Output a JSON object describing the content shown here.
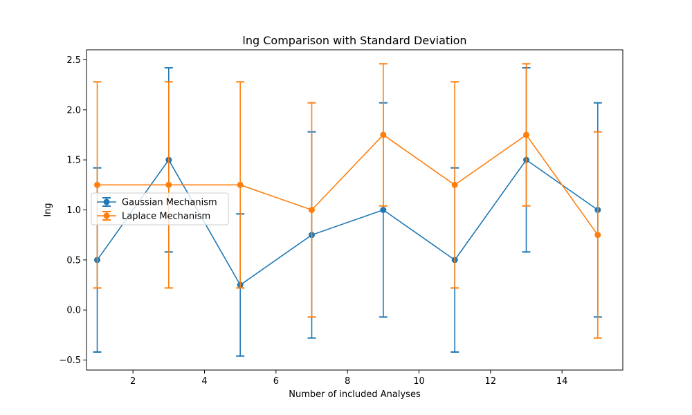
{
  "chart_data": {
    "type": "line",
    "title": "lng Comparison with Standard Deviation",
    "xlabel": "Number of included Analyses",
    "ylabel": "lng",
    "xlim": [
      0.7,
      15.7
    ],
    "ylim": [
      -0.6,
      2.6
    ],
    "xticks": [
      2,
      4,
      6,
      8,
      10,
      12,
      14
    ],
    "yticks": [
      -0.5,
      0.0,
      0.5,
      1.0,
      1.5,
      2.0,
      2.5
    ],
    "ytick_labels": [
      "−0.5",
      "0.0",
      "0.5",
      "1.0",
      "1.5",
      "2.0",
      "2.5"
    ],
    "x": [
      1,
      3,
      5,
      7,
      9,
      11,
      13,
      15
    ],
    "grid": false,
    "legend_position": "center-left",
    "series": [
      {
        "name": "Gaussian Mechanism",
        "color": "#1f77b4",
        "marker": "circle",
        "error_bars": true,
        "values": [
          0.5,
          1.5,
          0.25,
          0.75,
          1.0,
          0.5,
          1.5,
          1.0
        ],
        "std": [
          0.92,
          0.92,
          0.71,
          1.03,
          1.07,
          0.92,
          0.92,
          1.07
        ]
      },
      {
        "name": "Laplace Mechanism",
        "color": "#ff7f0e",
        "marker": "circle",
        "error_bars": true,
        "values": [
          1.25,
          1.25,
          1.25,
          1.0,
          1.75,
          1.25,
          1.75,
          0.75
        ],
        "std": [
          1.03,
          1.03,
          1.03,
          1.07,
          0.71,
          1.03,
          0.71,
          1.03
        ]
      }
    ]
  }
}
